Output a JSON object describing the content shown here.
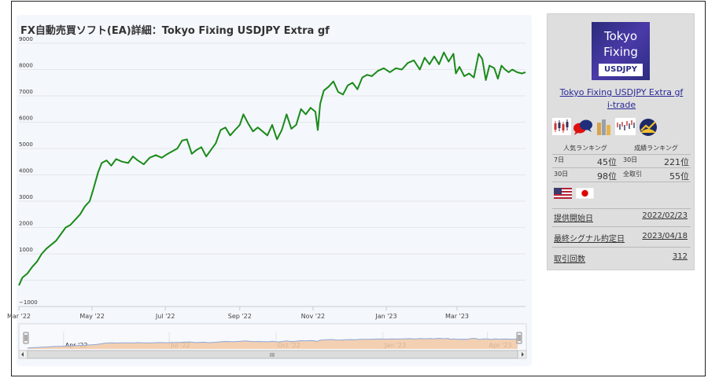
{
  "chart_data": {
    "type": "line",
    "title": "FX自動売買ソフト(EA)詳細：Tokyo Fixing USDJPY Extra gf",
    "xlabel": "",
    "ylabel": "",
    "ylim": [
      -1000,
      9000
    ],
    "yticks": [
      9000,
      8000,
      7000,
      6000,
      5000,
      4000,
      3000,
      2000,
      1000,
      0,
      -1000
    ],
    "ytick_labels": [
      "9000",
      "8000",
      "7000",
      "6000",
      "5000",
      "4000",
      "3000",
      "2000",
      "1000",
      "",
      "−1000"
    ],
    "xlim": [
      "2022-03-01",
      "2023-04-27"
    ],
    "x_ticks": [
      {
        "date": "2022-03-01",
        "label": "Mar '22"
      },
      {
        "date": "2022-05-01",
        "label": "May '22"
      },
      {
        "date": "2022-07-01",
        "label": "Jul '22"
      },
      {
        "date": "2022-09-01",
        "label": "Sep '22"
      },
      {
        "date": "2022-11-01",
        "label": "Nov '22"
      },
      {
        "date": "2023-01-01",
        "label": "Jan '23"
      },
      {
        "date": "2023-03-01",
        "label": "Mar '23"
      }
    ],
    "line_color": "#1a8a1a",
    "grid": true,
    "series": [
      {
        "points": [
          [
            "2022-03-01",
            -200
          ],
          [
            "2022-03-04",
            100
          ],
          [
            "2022-03-08",
            250
          ],
          [
            "2022-03-12",
            500
          ],
          [
            "2022-03-16",
            700
          ],
          [
            "2022-03-20",
            1000
          ],
          [
            "2022-03-24",
            1200
          ],
          [
            "2022-03-28",
            1350
          ],
          [
            "2022-04-01",
            1500
          ],
          [
            "2022-04-05",
            1750
          ],
          [
            "2022-04-09",
            2000
          ],
          [
            "2022-04-13",
            2100
          ],
          [
            "2022-04-17",
            2300
          ],
          [
            "2022-04-21",
            2500
          ],
          [
            "2022-04-25",
            2800
          ],
          [
            "2022-04-29",
            3000
          ],
          [
            "2022-05-02",
            3450
          ],
          [
            "2022-05-06",
            4100
          ],
          [
            "2022-05-09",
            4450
          ],
          [
            "2022-05-13",
            4550
          ],
          [
            "2022-05-17",
            4350
          ],
          [
            "2022-05-21",
            4600
          ],
          [
            "2022-05-26",
            4500
          ],
          [
            "2022-05-31",
            4450
          ],
          [
            "2022-06-04",
            4700
          ],
          [
            "2022-06-08",
            4550
          ],
          [
            "2022-06-13",
            4400
          ],
          [
            "2022-06-18",
            4650
          ],
          [
            "2022-06-23",
            4750
          ],
          [
            "2022-06-28",
            4650
          ],
          [
            "2022-07-03",
            4800
          ],
          [
            "2022-07-07",
            4900
          ],
          [
            "2022-07-11",
            5000
          ],
          [
            "2022-07-15",
            5300
          ],
          [
            "2022-07-19",
            5350
          ],
          [
            "2022-07-23",
            4800
          ],
          [
            "2022-07-27",
            4950
          ],
          [
            "2022-07-31",
            5050
          ],
          [
            "2022-08-04",
            4700
          ],
          [
            "2022-08-08",
            4950
          ],
          [
            "2022-08-12",
            5200
          ],
          [
            "2022-08-16",
            5700
          ],
          [
            "2022-08-20",
            5800
          ],
          [
            "2022-08-24",
            5500
          ],
          [
            "2022-08-28",
            5700
          ],
          [
            "2022-09-01",
            5900
          ],
          [
            "2022-09-04",
            6300
          ],
          [
            "2022-09-08",
            5950
          ],
          [
            "2022-09-12",
            5650
          ],
          [
            "2022-09-16",
            5800
          ],
          [
            "2022-09-20",
            5650
          ],
          [
            "2022-09-24",
            5500
          ],
          [
            "2022-09-28",
            5900
          ],
          [
            "2022-10-02",
            5350
          ],
          [
            "2022-10-06",
            5700
          ],
          [
            "2022-10-10",
            6300
          ],
          [
            "2022-10-14",
            5750
          ],
          [
            "2022-10-18",
            5900
          ],
          [
            "2022-10-22",
            6500
          ],
          [
            "2022-10-26",
            6300
          ],
          [
            "2022-10-30",
            6550
          ],
          [
            "2022-11-03",
            6400
          ],
          [
            "2022-11-05",
            5700
          ],
          [
            "2022-11-07",
            6700
          ],
          [
            "2022-11-10",
            7200
          ],
          [
            "2022-11-14",
            7350
          ],
          [
            "2022-11-18",
            7550
          ],
          [
            "2022-11-22",
            7150
          ],
          [
            "2022-11-26",
            7050
          ],
          [
            "2022-11-30",
            7400
          ],
          [
            "2022-12-04",
            7500
          ],
          [
            "2022-12-08",
            7250
          ],
          [
            "2022-12-12",
            7700
          ],
          [
            "2022-12-16",
            7800
          ],
          [
            "2022-12-20",
            7750
          ],
          [
            "2022-12-25",
            7950
          ],
          [
            "2022-12-30",
            8050
          ],
          [
            "2023-01-04",
            7900
          ],
          [
            "2023-01-09",
            8050
          ],
          [
            "2023-01-14",
            8000
          ],
          [
            "2023-01-19",
            8250
          ],
          [
            "2023-01-24",
            8350
          ],
          [
            "2023-01-29",
            8000
          ],
          [
            "2023-02-02",
            8450
          ],
          [
            "2023-02-06",
            8200
          ],
          [
            "2023-02-10",
            8500
          ],
          [
            "2023-02-14",
            8200
          ],
          [
            "2023-02-18",
            8650
          ],
          [
            "2023-02-22",
            8300
          ],
          [
            "2023-02-26",
            8600
          ],
          [
            "2023-02-28",
            7850
          ],
          [
            "2023-03-03",
            8100
          ],
          [
            "2023-03-07",
            7750
          ],
          [
            "2023-03-11",
            7850
          ],
          [
            "2023-03-15",
            7700
          ],
          [
            "2023-03-19",
            8600
          ],
          [
            "2023-03-22",
            8400
          ],
          [
            "2023-03-25",
            7600
          ],
          [
            "2023-03-28",
            8150
          ],
          [
            "2023-04-01",
            8050
          ],
          [
            "2023-04-04",
            7650
          ],
          [
            "2023-04-07",
            8150
          ],
          [
            "2023-04-10",
            8000
          ],
          [
            "2023-04-13",
            7900
          ],
          [
            "2023-04-16",
            8000
          ],
          [
            "2023-04-20",
            7900
          ],
          [
            "2023-04-24",
            7850
          ],
          [
            "2023-04-27",
            7900
          ]
        ]
      }
    ],
    "navigator": {
      "x_ticks": [
        {
          "date": "2022-04-01",
          "label": "Apr '22"
        },
        {
          "date": "2022-07-01",
          "label": "Jul '22"
        },
        {
          "date": "2022-10-01",
          "label": "Oct '22"
        },
        {
          "date": "2023-01-01",
          "label": "Jan '23"
        },
        {
          "date": "2023-04-01",
          "label": "Apr '23"
        }
      ],
      "fill_color": "#f2c9a4",
      "line_color": "#8fa8d8",
      "scroll_grip": "III"
    }
  },
  "sidebar": {
    "logo": {
      "line1": "Tokyo",
      "line2": "Fixing",
      "badge": "USDJPY"
    },
    "ea_name": "Tokyo Fixing USDJPY Extra gf",
    "developer": "i-trade",
    "icons": [
      "candlestick-icon",
      "speech-bubbles-icon",
      "bar-columns-icon",
      "tick-chart-icon",
      "sunrise-trend-icon"
    ],
    "popularity_title": "人気ランキング",
    "performance_title": "成績ランキング",
    "popularity": [
      {
        "period": "7日",
        "rank": "45位"
      },
      {
        "period": "30日",
        "rank": "98位"
      }
    ],
    "performance": [
      {
        "period": "30日",
        "rank": "221位"
      },
      {
        "period": "全取引",
        "rank": "55位"
      }
    ],
    "flags": [
      "us-flag-icon",
      "japan-flag-icon"
    ],
    "info": [
      {
        "label": "提供開始日",
        "value": "2022/02/23"
      },
      {
        "label": "最終シグナル約定日",
        "value": "2023/04/18"
      },
      {
        "label": "取引回数",
        "value": "312"
      }
    ]
  }
}
